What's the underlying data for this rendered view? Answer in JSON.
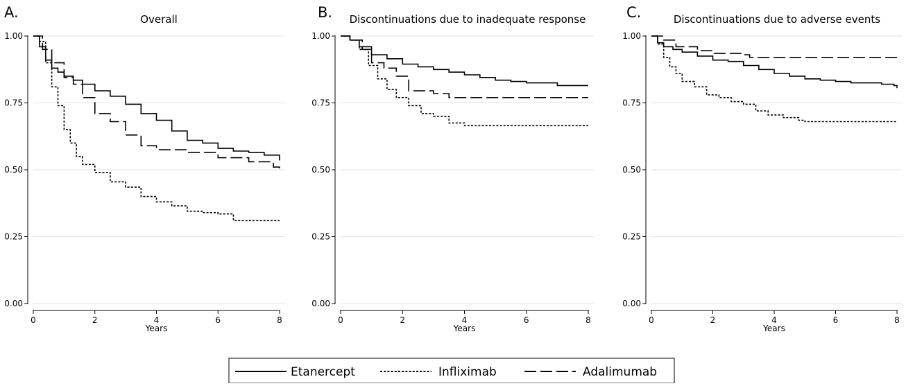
{
  "legend": {
    "placement": "bottom-center",
    "items": [
      {
        "name": "Etanercept",
        "dash": "solid"
      },
      {
        "name": "Infliximab",
        "dash": "dotted"
      },
      {
        "name": "Adalimumab",
        "dash": "long-dash"
      }
    ]
  },
  "chart_data": [
    {
      "type": "line",
      "panel_letter": "A.",
      "title": "Overall",
      "xlabel": "Years",
      "ylabel": "",
      "xlim": [
        0,
        8
      ],
      "ylim": [
        0,
        1
      ],
      "x_ticks": [
        "0",
        "2",
        "4",
        "6",
        "8"
      ],
      "y_ticks": [
        "0.00",
        "0.25",
        "0.50",
        "0.75",
        "1.00"
      ],
      "grid": "horizontal",
      "series": [
        {
          "name": "Etanercept",
          "dash": "solid",
          "points": [
            [
              0,
              1
            ],
            [
              0.2,
              0.96
            ],
            [
              0.4,
              0.91
            ],
            [
              0.6,
              0.88
            ],
            [
              0.8,
              0.865
            ],
            [
              1,
              0.85
            ],
            [
              1.3,
              0.835
            ],
            [
              1.6,
              0.82
            ],
            [
              2,
              0.795
            ],
            [
              2.5,
              0.775
            ],
            [
              3,
              0.745
            ],
            [
              3.5,
              0.71
            ],
            [
              4,
              0.685
            ],
            [
              4.5,
              0.645
            ],
            [
              5,
              0.61
            ],
            [
              5.5,
              0.6
            ],
            [
              6,
              0.58
            ],
            [
              6.5,
              0.57
            ],
            [
              7,
              0.565
            ],
            [
              7.5,
              0.555
            ],
            [
              8,
              0.535
            ]
          ]
        },
        {
          "name": "Infliximab",
          "dash": "dotted",
          "points": [
            [
              0,
              1
            ],
            [
              0.2,
              0.98
            ],
            [
              0.4,
              0.9
            ],
            [
              0.6,
              0.81
            ],
            [
              0.8,
              0.74
            ],
            [
              1,
              0.65
            ],
            [
              1.2,
              0.6
            ],
            [
              1.4,
              0.55
            ],
            [
              1.6,
              0.52
            ],
            [
              2,
              0.49
            ],
            [
              2.5,
              0.455
            ],
            [
              3,
              0.435
            ],
            [
              3.5,
              0.4
            ],
            [
              4,
              0.38
            ],
            [
              4.5,
              0.365
            ],
            [
              5,
              0.345
            ],
            [
              5.5,
              0.34
            ],
            [
              6,
              0.335
            ],
            [
              6.5,
              0.31
            ],
            [
              7,
              0.31
            ],
            [
              8,
              0.31
            ]
          ]
        },
        {
          "name": "Adalimumab",
          "dash": "long-dash",
          "points": [
            [
              0,
              1
            ],
            [
              0.3,
              0.95
            ],
            [
              0.6,
              0.9
            ],
            [
              1,
              0.845
            ],
            [
              1.3,
              0.82
            ],
            [
              1.6,
              0.77
            ],
            [
              2,
              0.71
            ],
            [
              2.5,
              0.68
            ],
            [
              3,
              0.63
            ],
            [
              3.5,
              0.59
            ],
            [
              4,
              0.575
            ],
            [
              5,
              0.565
            ],
            [
              6,
              0.545
            ],
            [
              7,
              0.53
            ],
            [
              7.8,
              0.51
            ],
            [
              8,
              0.49
            ]
          ]
        }
      ]
    },
    {
      "type": "line",
      "panel_letter": "B.",
      "title": "Discontinuations due to inadequate response",
      "xlabel": "Years",
      "ylabel": "",
      "xlim": [
        0,
        8
      ],
      "ylim": [
        0,
        1
      ],
      "x_ticks": [
        "0",
        "2",
        "4",
        "6",
        "8"
      ],
      "y_ticks": [
        "0.00",
        "0.25",
        "0.50",
        "0.75",
        "1.00"
      ],
      "grid": "horizontal",
      "series": [
        {
          "name": "Etanercept",
          "dash": "solid",
          "points": [
            [
              0,
              1
            ],
            [
              0.3,
              0.985
            ],
            [
              0.6,
              0.96
            ],
            [
              1,
              0.93
            ],
            [
              1.5,
              0.915
            ],
            [
              2,
              0.895
            ],
            [
              2.5,
              0.885
            ],
            [
              3,
              0.875
            ],
            [
              3.5,
              0.865
            ],
            [
              4,
              0.855
            ],
            [
              4.5,
              0.845
            ],
            [
              5,
              0.835
            ],
            [
              5.5,
              0.83
            ],
            [
              6,
              0.825
            ],
            [
              7,
              0.815
            ],
            [
              8,
              0.815
            ]
          ]
        },
        {
          "name": "Infliximab",
          "dash": "dotted",
          "points": [
            [
              0,
              1
            ],
            [
              0.3,
              0.985
            ],
            [
              0.6,
              0.95
            ],
            [
              0.9,
              0.89
            ],
            [
              1.2,
              0.84
            ],
            [
              1.5,
              0.8
            ],
            [
              1.8,
              0.77
            ],
            [
              2.2,
              0.74
            ],
            [
              2.6,
              0.71
            ],
            [
              3,
              0.7
            ],
            [
              3.5,
              0.675
            ],
            [
              4,
              0.665
            ],
            [
              5,
              0.665
            ],
            [
              6,
              0.665
            ],
            [
              8,
              0.665
            ]
          ]
        },
        {
          "name": "Adalimumab",
          "dash": "long-dash",
          "points": [
            [
              0,
              1
            ],
            [
              0.3,
              0.985
            ],
            [
              0.7,
              0.95
            ],
            [
              1,
              0.9
            ],
            [
              1.4,
              0.88
            ],
            [
              1.8,
              0.85
            ],
            [
              2.2,
              0.795
            ],
            [
              3,
              0.785
            ],
            [
              3.5,
              0.77
            ],
            [
              4,
              0.77
            ],
            [
              6,
              0.77
            ],
            [
              8,
              0.77
            ]
          ]
        }
      ]
    },
    {
      "type": "line",
      "panel_letter": "C.",
      "title": "Discontinuations due to adverse events",
      "xlabel": "Years",
      "ylabel": "",
      "xlim": [
        0,
        8
      ],
      "ylim": [
        0,
        1
      ],
      "x_ticks": [
        "0",
        "2",
        "4",
        "6",
        "8"
      ],
      "y_ticks": [
        "0.00",
        "0.25",
        "0.50",
        "0.75",
        "1.00"
      ],
      "grid": "horizontal",
      "series": [
        {
          "name": "Etanercept",
          "dash": "solid",
          "points": [
            [
              0,
              1
            ],
            [
              0.2,
              0.975
            ],
            [
              0.4,
              0.96
            ],
            [
              0.7,
              0.95
            ],
            [
              1,
              0.94
            ],
            [
              1.5,
              0.925
            ],
            [
              2,
              0.91
            ],
            [
              2.5,
              0.905
            ],
            [
              3,
              0.89
            ],
            [
              3.5,
              0.875
            ],
            [
              4,
              0.86
            ],
            [
              4.5,
              0.85
            ],
            [
              5,
              0.84
            ],
            [
              5.5,
              0.835
            ],
            [
              6,
              0.83
            ],
            [
              6.5,
              0.825
            ],
            [
              7,
              0.825
            ],
            [
              7.5,
              0.82
            ],
            [
              7.9,
              0.815
            ],
            [
              8,
              0.805
            ]
          ]
        },
        {
          "name": "Infliximab",
          "dash": "dotted",
          "points": [
            [
              0,
              1
            ],
            [
              0.2,
              0.97
            ],
            [
              0.4,
              0.92
            ],
            [
              0.6,
              0.885
            ],
            [
              0.8,
              0.86
            ],
            [
              1,
              0.83
            ],
            [
              1.4,
              0.81
            ],
            [
              1.8,
              0.78
            ],
            [
              2.2,
              0.77
            ],
            [
              2.6,
              0.755
            ],
            [
              3,
              0.745
            ],
            [
              3.4,
              0.72
            ],
            [
              3.8,
              0.705
            ],
            [
              4.3,
              0.695
            ],
            [
              4.8,
              0.685
            ],
            [
              5,
              0.68
            ],
            [
              6,
              0.68
            ],
            [
              8,
              0.68
            ]
          ]
        },
        {
          "name": "Adalimumab",
          "dash": "long-dash",
          "points": [
            [
              0,
              1
            ],
            [
              0.4,
              0.985
            ],
            [
              0.8,
              0.96
            ],
            [
              1.5,
              0.945
            ],
            [
              2,
              0.935
            ],
            [
              3,
              0.93
            ],
            [
              3.2,
              0.92
            ],
            [
              4,
              0.92
            ],
            [
              5,
              0.92
            ],
            [
              6,
              0.92
            ],
            [
              8,
              0.92
            ]
          ]
        }
      ]
    }
  ]
}
